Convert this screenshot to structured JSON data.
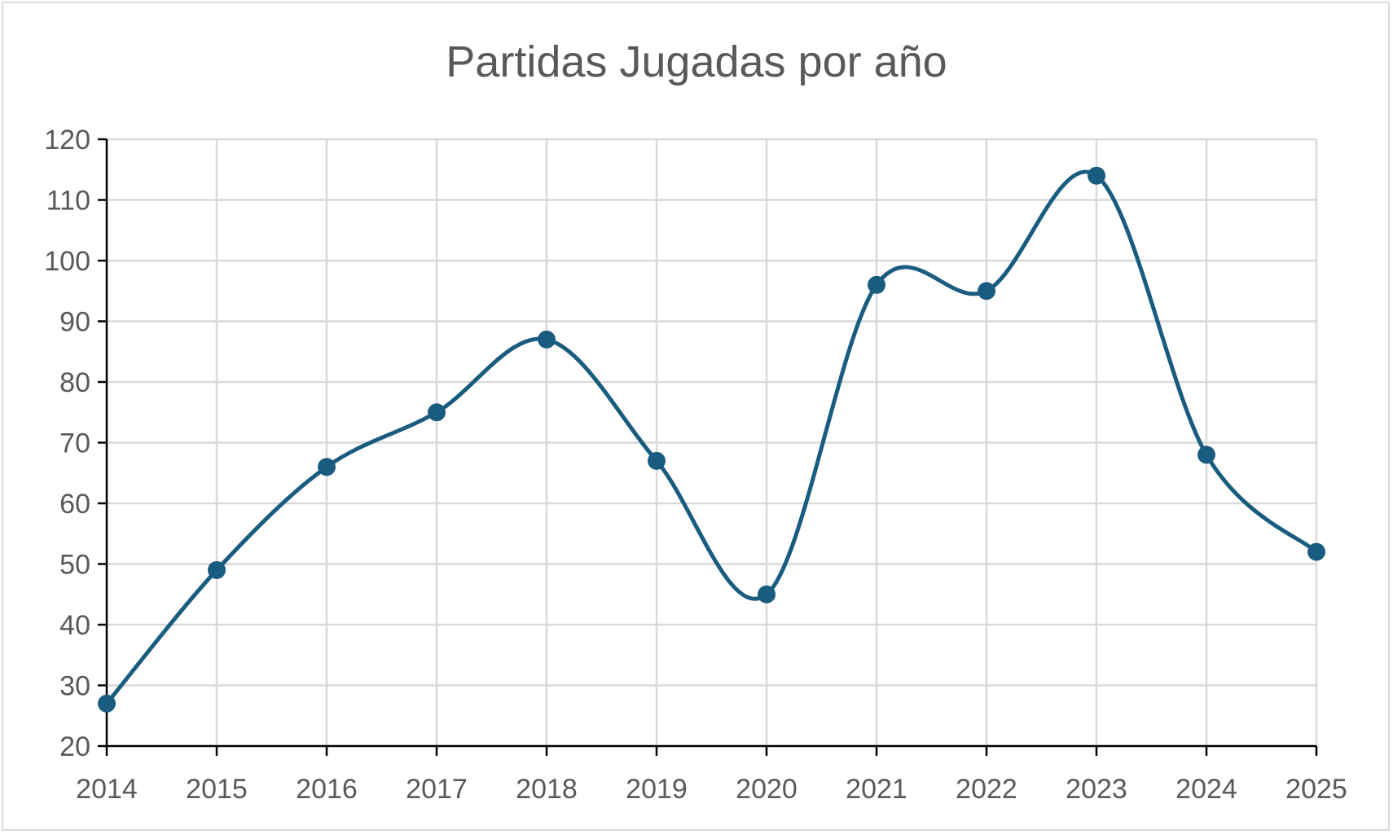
{
  "colors": {
    "series": "#1a5c7f",
    "grid": "#d9d9d9",
    "text": "#595959",
    "axis": "#000000"
  },
  "chart_data": {
    "type": "line",
    "title": "Partidas Jugadas por año",
    "xlabel": "",
    "ylabel": "",
    "x": [
      "2014",
      "2015",
      "2016",
      "2017",
      "2018",
      "2019",
      "2020",
      "2021",
      "2022",
      "2023",
      "2024",
      "2025"
    ],
    "series": [
      {
        "values": [
          27,
          49,
          66,
          75,
          87,
          67,
          45,
          96,
          95,
          114,
          68,
          52
        ]
      }
    ],
    "ylim": [
      20,
      120
    ],
    "yticks": [
      20,
      30,
      40,
      50,
      60,
      70,
      80,
      90,
      100,
      110,
      120
    ],
    "smooth": true,
    "markers": true,
    "grid": true,
    "legend": "none"
  }
}
